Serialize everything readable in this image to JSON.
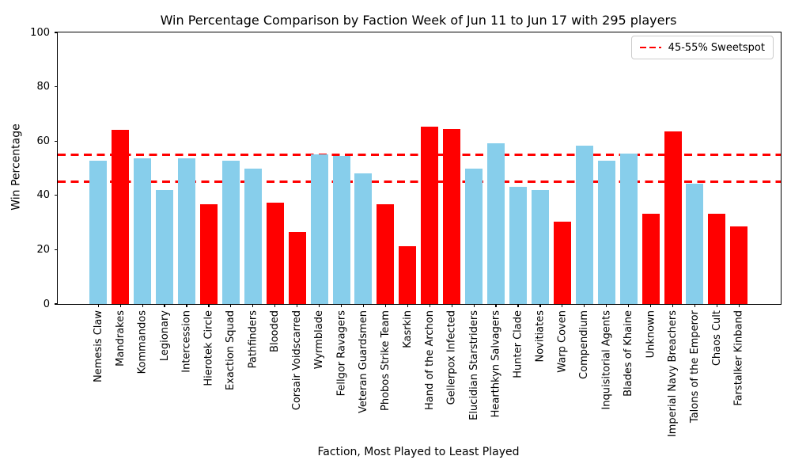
{
  "title": "Win Percentage Comparison by Faction Week of Jun 11 to Jun 17 with 295 players",
  "legend": {
    "label": "45-55% Sweetspot"
  },
  "axes": {
    "xlabel": "Faction, Most Played to Least Played",
    "ylabel": "Win Percentage"
  },
  "chart_data": {
    "type": "bar",
    "title": "Win Percentage Comparison by Faction Week of Jun 11 to Jun 17 with 295 players",
    "xlabel": "Faction, Most Played to Least Played",
    "ylabel": "Win Percentage",
    "ylim": [
      0,
      100
    ],
    "ytick_labels": [
      "0",
      "20",
      "40",
      "60",
      "80",
      "100"
    ],
    "yticks": [
      0,
      20,
      40,
      60,
      80,
      100
    ],
    "grid": false,
    "legend_position": "upper right",
    "legend_entries": [
      "45-55% Sweetspot"
    ],
    "reference_lines": [
      {
        "y": 45,
        "style": "dashed",
        "color": "#FF0000",
        "label": "45-55% Sweetspot"
      },
      {
        "y": 55,
        "style": "dashed",
        "color": "#FF0000",
        "label": "45-55% Sweetspot"
      }
    ],
    "colors": {
      "in_range_bar": "#87CEEB",
      "outlier_bar": "#FF0000",
      "sweetspot_line": "#FF0000"
    },
    "players_total": 295,
    "week_range": "Jun 11 to Jun 17",
    "categories": [
      "Nemesis Claw",
      "Mandrakes",
      "Kommandos",
      "Legionary",
      "Intercession",
      "Hierotek Circle",
      "Exaction Squad",
      "Pathfinders",
      "Blooded",
      "Corsair Voidscarred",
      "Wyrmblade",
      "Fellgor Ravagers",
      "Veteran Guardsmen",
      "Phobos Strike Team",
      "Kasrkin",
      "Hand of the Archon",
      "Gellerpox Infected",
      "Elucidian Starstriders",
      "Hearthkyn Salvagers",
      "Hunter Clade",
      "Novitiates",
      "Warp Coven",
      "Compendium",
      "Inquisitorial Agents",
      "Blades of Khaine",
      "Unknown",
      "Imperial Navy Breachers",
      "Talons of the Emperor",
      "Chaos Cult",
      "Farstalker Kinband"
    ],
    "values": [
      52.9,
      64.1,
      53.6,
      41.9,
      53.6,
      36.8,
      52.9,
      49.8,
      37.4,
      26.4,
      55.0,
      54.5,
      48.2,
      36.7,
      21.2,
      65.3,
      64.4,
      50.0,
      59.1,
      43.1,
      42.0,
      30.2,
      58.3,
      52.8,
      55.4,
      33.3,
      63.6,
      44.4,
      33.3,
      28.5
    ],
    "bar_colors": [
      "#87CEEB",
      "#FF0000",
      "#87CEEB",
      "#87CEEB",
      "#87CEEB",
      "#FF0000",
      "#87CEEB",
      "#87CEEB",
      "#FF0000",
      "#FF0000",
      "#87CEEB",
      "#87CEEB",
      "#87CEEB",
      "#FF0000",
      "#FF0000",
      "#FF0000",
      "#FF0000",
      "#87CEEB",
      "#87CEEB",
      "#87CEEB",
      "#87CEEB",
      "#FF0000",
      "#87CEEB",
      "#87CEEB",
      "#87CEEB",
      "#FF0000",
      "#FF0000",
      "#87CEEB",
      "#FF0000",
      "#FF0000"
    ]
  }
}
